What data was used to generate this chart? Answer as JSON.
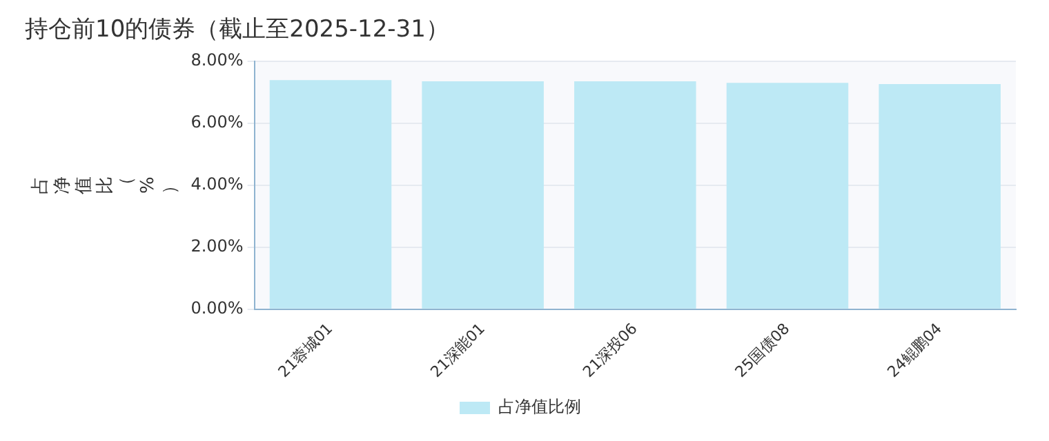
{
  "chart_data": {
    "type": "bar",
    "title": "持仓前10的债券（截止至2025-12-31）",
    "ylabel": "占净值比（%）",
    "categories": [
      "21蓉城01",
      "21深能01",
      "21深投06",
      "25国债08",
      "24鲲鹏04"
    ],
    "series": [
      {
        "name": "占净值比例",
        "color": "#bde9f5",
        "values": [
          7.39,
          7.35,
          7.35,
          7.3,
          7.26
        ]
      }
    ],
    "ylim": [
      0,
      8
    ],
    "yticks": [
      {
        "value": 0,
        "label": "0.00%"
      },
      {
        "value": 2,
        "label": "2.00%"
      },
      {
        "value": 4,
        "label": "4.00%"
      },
      {
        "value": 6,
        "label": "6.00%"
      },
      {
        "value": 8,
        "label": "8.00%"
      }
    ],
    "grid": "y",
    "legend": "bottom"
  }
}
